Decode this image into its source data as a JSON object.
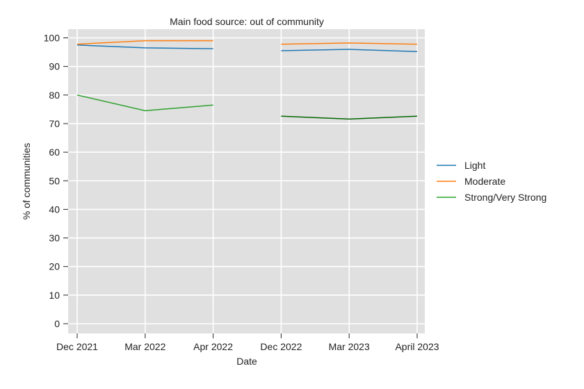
{
  "chart_data": {
    "type": "line",
    "title": "Main food source: out of community",
    "xlabel": "Date",
    "ylabel": "% of communities",
    "categories": [
      "Dec 2021",
      "Mar 2022",
      "Apr 2022",
      "Dec 2022",
      "Mar 2023",
      "April 2023"
    ],
    "ylim": [
      0,
      100
    ],
    "yticks": [
      0,
      10,
      20,
      30,
      40,
      50,
      60,
      70,
      80,
      90,
      100
    ],
    "grid": true,
    "legend_position": "right",
    "series": [
      {
        "name": "Light",
        "color": "#1f77b4",
        "segments": [
          {
            "x": [
              "Dec 2021",
              "Mar 2022",
              "Apr 2022"
            ],
            "y": [
              97.5,
              96.5,
              96.2
            ]
          },
          {
            "x": [
              "Dec 2022",
              "Mar 2023",
              "April 2023"
            ],
            "y": [
              95.5,
              96.0,
              95.2
            ]
          }
        ]
      },
      {
        "name": "Moderate",
        "color": "#ff7f0e",
        "segments": [
          {
            "x": [
              "Dec 2021",
              "Mar 2022",
              "Apr 2022"
            ],
            "y": [
              97.8,
              99.0,
              99.0
            ]
          },
          {
            "x": [
              "Dec 2022",
              "Mar 2023",
              "April 2023"
            ],
            "y": [
              97.8,
              98.2,
              97.8
            ]
          }
        ]
      },
      {
        "name": "Strong/Very Strong",
        "color": "#2ca02c",
        "segments": [
          {
            "x": [
              "Dec 2021",
              "Mar 2022",
              "Apr 2022"
            ],
            "y": [
              80.0,
              74.5,
              76.5
            ],
            "color": "#2ca02c"
          },
          {
            "x": [
              "Dec 2022",
              "Mar 2023",
              "April 2023"
            ],
            "y": [
              72.6,
              71.6,
              72.6
            ],
            "color": "#006400"
          }
        ]
      }
    ]
  },
  "style": {
    "plot_background": "#e0e0e0",
    "grid_color": "#ffffff"
  }
}
